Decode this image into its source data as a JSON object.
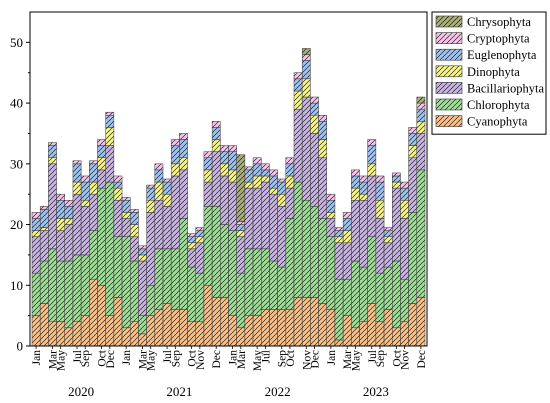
{
  "chart_data": {
    "type": "bar",
    "stacked": true,
    "ylim": [
      0,
      55
    ],
    "yticks": [
      0,
      10,
      20,
      30,
      40,
      50
    ],
    "xlabel": "",
    "ylabel": "",
    "legend_position": "top-right",
    "month_labels": [
      "Jan",
      "Mar",
      "May",
      "Jul",
      "Sep",
      "Oct",
      "Dec",
      "Jan",
      "Mar",
      "May",
      "Jul",
      "Sep",
      "Oct",
      "Nov",
      "Dec",
      "Jan",
      "Mar",
      "May",
      "Jul",
      "Sep",
      "Oct",
      "Nov",
      "Dec",
      "Jan",
      "Mar",
      "May",
      "Jul",
      "Sep",
      "Oct",
      "Nov",
      "Dec"
    ],
    "year_labels": [
      {
        "label": "2020",
        "center_index": 5.5
      },
      {
        "label": "2021",
        "center_index": 17.5
      },
      {
        "label": "2022",
        "center_index": 29.5
      },
      {
        "label": "2023",
        "center_index": 41.5
      }
    ],
    "categories": [
      "Jan 2020",
      "Feb 2020",
      "Mar 2020",
      "Apr 2020",
      "May 2020",
      "Jun 2020",
      "Jul 2020",
      "Aug 2020",
      "Sep 2020",
      "Oct 2020",
      "Nov 2020",
      "Dec 2020",
      "Jan 2021",
      "Feb 2021",
      "Mar 2021",
      "Apr 2021",
      "May 2021",
      "Jun 2021",
      "Jul 2021",
      "Aug 2021",
      "Sep 2021",
      "Oct 2021",
      "Nov 2021",
      "Dec 2021",
      "Jan 2022",
      "Feb 2022",
      "Mar 2022",
      "Apr 2022",
      "May 2022",
      "Jun 2022",
      "Jul 2022",
      "Aug 2022",
      "Sep 2022",
      "Oct 2022",
      "Nov 2022",
      "Dec 2022",
      "Jan 2023",
      "Feb 2023",
      "Mar 2023",
      "Apr 2023",
      "May 2023",
      "Jun 2023",
      "Jul 2023",
      "Aug 2023",
      "Sep 2023",
      "Oct 2023",
      "Nov 2023",
      "Dec 2023"
    ],
    "series": [
      {
        "name": "Cyanophyta",
        "color": "#f7c08a",
        "values": [
          5,
          7,
          4,
          4,
          3,
          4,
          5,
          11,
          10,
          5,
          8,
          3,
          4,
          2,
          5,
          6,
          7,
          6,
          6,
          4,
          4,
          10,
          8,
          8,
          5,
          3,
          5,
          5,
          6,
          6,
          6,
          6,
          8,
          8,
          8,
          7,
          6,
          1,
          5,
          3,
          4,
          7,
          4,
          6,
          3,
          4,
          7,
          8
        ]
      },
      {
        "name": "Chlorophyta",
        "color": "#9fdc98",
        "values": [
          7,
          7,
          12,
          10,
          11,
          11,
          10,
          8,
          16,
          22,
          10,
          15,
          10,
          3,
          5,
          10,
          9,
          10,
          15,
          9,
          8,
          13,
          15,
          12,
          14,
          9,
          11,
          11,
          10,
          8,
          7,
          15,
          19,
          16,
          15,
          14,
          12,
          10,
          6,
          11,
          9,
          11,
          8,
          7,
          11,
          7,
          15,
          21
        ]
      },
      {
        "name": "Bacillariophyta",
        "color": "#c7b4e0",
        "values": [
          6,
          5,
          14,
          5,
          6,
          10,
          8,
          6,
          3,
          6,
          6,
          3,
          4,
          9,
          12,
          8,
          7,
          12,
          8,
          3,
          5,
          4,
          9,
          8,
          8,
          6,
          10,
          10,
          11,
          11,
          10,
          5,
          12,
          17,
          12,
          10,
          3,
          6,
          6,
          10,
          11,
          10,
          9,
          4,
          12,
          10,
          9,
          6
        ]
      },
      {
        "name": "Dinophyta",
        "color": "#f4f28a",
        "values": [
          1,
          0.5,
          1,
          2,
          1,
          2,
          1,
          2,
          2,
          3,
          2,
          1,
          2,
          1,
          2,
          3,
          2,
          2,
          2,
          1,
          1,
          2,
          2,
          2,
          2,
          1,
          1,
          2,
          1,
          1,
          2,
          2,
          3,
          3,
          3,
          3,
          1,
          1,
          2,
          2,
          1,
          2,
          3,
          1,
          1,
          3,
          2,
          2
        ]
      },
      {
        "name": "Euglenophyta",
        "color": "#9ec1ee",
        "values": [
          2,
          3,
          2,
          3,
          2,
          3,
          3,
          3,
          2,
          2,
          1,
          2,
          2,
          1,
          2,
          2,
          2,
          3,
          3,
          1,
          1,
          2,
          2,
          2,
          3,
          1,
          2,
          2,
          1,
          2,
          2,
          2,
          2,
          3,
          2,
          3,
          2,
          1,
          2,
          2,
          2,
          3,
          3,
          1,
          1,
          2,
          2,
          2
        ]
      },
      {
        "name": "Cryptophyta",
        "color": "#f4c2ea",
        "values": [
          1,
          0.5,
          0.5,
          1,
          1,
          0.5,
          1,
          0.5,
          1,
          0.5,
          1,
          0.5,
          0.5,
          0.5,
          0.5,
          1,
          0.5,
          1,
          1,
          0.5,
          0.5,
          1,
          1,
          1,
          1,
          0.5,
          0.5,
          1,
          1,
          1,
          0.5,
          1,
          1,
          1,
          1,
          1,
          1,
          0.5,
          1,
          1,
          1,
          1,
          1,
          0.5,
          0.5,
          1,
          1,
          1
        ]
      },
      {
        "name": "Chrysophyta",
        "color": "#a9ad78",
        "values": [
          0,
          0,
          0,
          0,
          0,
          0,
          0,
          0,
          0,
          0,
          0,
          0,
          0,
          0,
          0,
          0,
          0,
          0,
          0,
          0,
          0,
          0,
          0,
          0,
          0,
          11,
          0,
          0,
          0,
          0,
          0,
          0,
          0,
          1,
          0,
          0,
          0,
          0,
          0,
          0,
          0,
          0,
          0,
          0,
          0,
          0,
          0,
          1
        ]
      }
    ]
  }
}
